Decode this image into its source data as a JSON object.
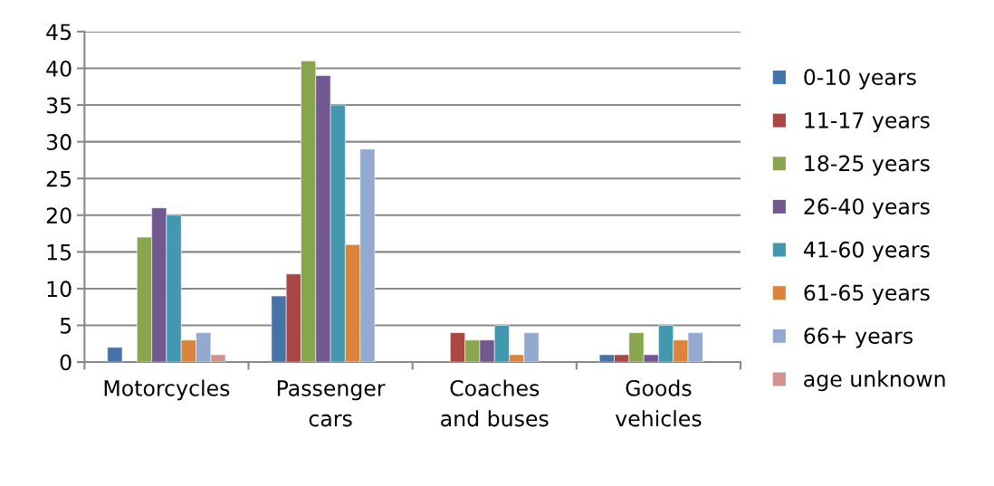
{
  "chart_data": {
    "type": "bar",
    "categories": [
      "Motorcycles",
      "Passenger\ncars",
      "Coaches\nand buses",
      "Goods\nvehicles"
    ],
    "series": [
      {
        "name": "0-10 years",
        "color": "#4572a7",
        "values": [
          2,
          9,
          null,
          1
        ]
      },
      {
        "name": "11-17 years",
        "color": "#aa4643",
        "values": [
          null,
          12,
          4,
          1
        ]
      },
      {
        "name": "18-25 years",
        "color": "#89a54e",
        "values": [
          17,
          41,
          3,
          4
        ]
      },
      {
        "name": "26-40 years",
        "color": "#71588f",
        "values": [
          21,
          39,
          3,
          1
        ]
      },
      {
        "name": "41-60 years",
        "color": "#4198af",
        "values": [
          20,
          35,
          5,
          5
        ]
      },
      {
        "name": "61-65 years",
        "color": "#db843d",
        "values": [
          3,
          16,
          1,
          3
        ]
      },
      {
        "name": "66+ years",
        "color": "#93a9cf",
        "values": [
          4,
          29,
          4,
          4
        ]
      },
      {
        "name": "age unknown",
        "color": "#d19392",
        "values": [
          1,
          null,
          null,
          null
        ]
      }
    ],
    "ylim": [
      0,
      45
    ],
    "yticks": [
      0,
      5,
      10,
      15,
      20,
      25,
      30,
      35,
      40,
      45
    ],
    "grid": "y",
    "legend": "right"
  }
}
